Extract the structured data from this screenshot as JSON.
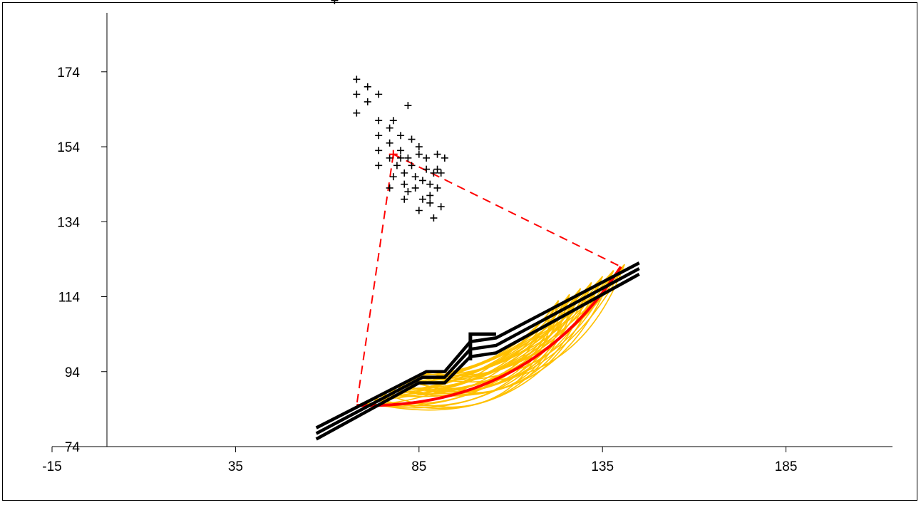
{
  "chart_data": {
    "type": "scatter",
    "title": "",
    "xlabel": "",
    "ylabel": "",
    "xlim": [
      -15,
      215
    ],
    "ylim": [
      74,
      194
    ],
    "x_ticks": [
      -15,
      35,
      85,
      135,
      185
    ],
    "y_ticks": [
      74,
      94,
      114,
      134,
      154,
      174
    ],
    "x_tick_labels": [
      "-15",
      "35",
      "85",
      "135",
      "185"
    ],
    "y_tick_labels": [
      "74",
      "94",
      "114",
      134,
      "154",
      "174"
    ],
    "grid": false,
    "legend": "none",
    "colors": {
      "axis": "#000000",
      "centers": "#000000",
      "critical_center": "#ff0000",
      "slope_surface": "#000000",
      "trial_slip_surfaces": "#ffc000",
      "critical_slip_surface": "#ff0000"
    },
    "center_points": [
      [
        62,
        193
      ],
      [
        68,
        172
      ],
      [
        68,
        168
      ],
      [
        68,
        163
      ],
      [
        71,
        170
      ],
      [
        71,
        166
      ],
      [
        74,
        168
      ],
      [
        74,
        161
      ],
      [
        74,
        157
      ],
      [
        74,
        153
      ],
      [
        74,
        149
      ],
      [
        77,
        159
      ],
      [
        77,
        155
      ],
      [
        77,
        151
      ],
      [
        77,
        143
      ],
      [
        78,
        146
      ],
      [
        79,
        149
      ],
      [
        80,
        153
      ],
      [
        80,
        157
      ],
      [
        80,
        151
      ],
      [
        81,
        147
      ],
      [
        81,
        144
      ],
      [
        81,
        140
      ],
      [
        82,
        165
      ],
      [
        82,
        151
      ],
      [
        82,
        142
      ],
      [
        83,
        156
      ],
      [
        83,
        149
      ],
      [
        84,
        146
      ],
      [
        84,
        143
      ],
      [
        85,
        152
      ],
      [
        85,
        137
      ],
      [
        85,
        154
      ],
      [
        86,
        140
      ],
      [
        86,
        145
      ],
      [
        87,
        151
      ],
      [
        87,
        148
      ],
      [
        88,
        141
      ],
      [
        88,
        144
      ],
      [
        88,
        139
      ],
      [
        89,
        147
      ],
      [
        89,
        135
      ],
      [
        90,
        152
      ],
      [
        90,
        148
      ],
      [
        90,
        143
      ],
      [
        91,
        147
      ],
      [
        91,
        138
      ],
      [
        92,
        151
      ],
      [
        78,
        161
      ]
    ],
    "critical_center": [
      78,
      152
    ],
    "slip_entry": [
      68,
      85
    ],
    "slip_exit": [
      140,
      122
    ],
    "slope_surface_lines": [
      [
        [
          57,
          79
        ],
        [
          87,
          94
        ],
        [
          92,
          94
        ],
        [
          99,
          102
        ],
        [
          106,
          103
        ],
        [
          145,
          123
        ]
      ],
      [
        [
          57,
          77.5
        ],
        [
          86,
          92.5
        ],
        [
          92,
          92.5
        ],
        [
          99,
          100
        ],
        [
          106,
          101
        ],
        [
          145,
          121.5
        ]
      ],
      [
        [
          57,
          76
        ],
        [
          85,
          91
        ],
        [
          92,
          91
        ],
        [
          99,
          98
        ],
        [
          106,
          99
        ],
        [
          145,
          120
        ]
      ]
    ],
    "wall": [
      [
        99,
        97
      ],
      [
        99,
        104
      ],
      [
        106,
        104
      ]
    ]
  }
}
